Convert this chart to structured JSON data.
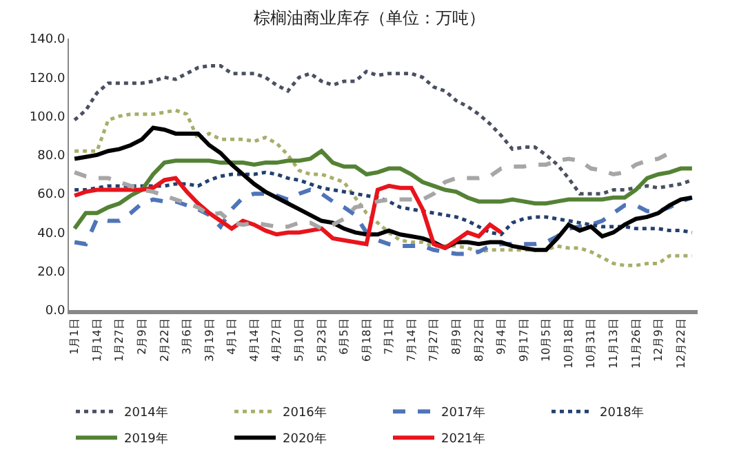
{
  "chart_data": {
    "type": "line",
    "title": "棕榈油商业库存（单位：万吨）",
    "categories": [
      "1月1日",
      null,
      "1月14日",
      null,
      "1月27日",
      null,
      "2月9日",
      null,
      "2月22日",
      null,
      "3月6日",
      null,
      "3月19日",
      null,
      "4月1日",
      null,
      "4月14日",
      null,
      "4月27日",
      null,
      "5月10日",
      null,
      "5月23日",
      null,
      "6月5日",
      null,
      "6月18日",
      null,
      "7月1日",
      null,
      "7月14日",
      null,
      "7月27日",
      null,
      "8月9日",
      null,
      "8月22日",
      null,
      "9月4日",
      null,
      "9月17日",
      null,
      "10月5日",
      null,
      "10月18日",
      null,
      "10月31日",
      null,
      "11月13日",
      null,
      "11月26日",
      null,
      "12月9日",
      null,
      "12月22日",
      null
    ],
    "series": [
      {
        "name": "2014年",
        "color": "#4a5060",
        "line_style": "dotted",
        "values": [
          98,
          103,
          112,
          117,
          117,
          117,
          117,
          118,
          120,
          119,
          122,
          125,
          126,
          126,
          122,
          122,
          122,
          120,
          116,
          113,
          120,
          122,
          118,
          116,
          118,
          118,
          123,
          121,
          122,
          122,
          122,
          120,
          115,
          113,
          108,
          105,
          101,
          96,
          90,
          83,
          84,
          84,
          80,
          75,
          68,
          60,
          60,
          60,
          62,
          62,
          63,
          64,
          63,
          64,
          65,
          67
        ]
      },
      {
        "name": "2016年",
        "color": "#a8ae6a",
        "line_style": "dotted",
        "values": [
          82,
          82,
          82,
          98,
          100,
          101,
          101,
          101,
          102,
          103,
          101,
          88,
          91,
          88,
          88,
          88,
          87,
          89,
          86,
          80,
          72,
          70,
          70,
          68,
          66,
          58,
          50,
          45,
          40,
          36,
          35,
          35,
          33,
          33,
          33,
          32,
          30,
          31,
          31,
          31,
          31,
          31,
          31,
          33,
          32,
          32,
          30,
          27,
          24,
          23,
          23,
          24,
          24,
          28,
          28,
          28
        ]
      },
      {
        "name": "2017年",
        "color": "#4f74b8",
        "line_style": "dashed",
        "values": [
          35,
          34,
          47,
          46,
          46,
          50,
          55,
          57,
          56,
          56,
          54,
          52,
          49,
          43,
          52,
          58,
          60,
          60,
          59,
          57,
          60,
          62,
          60,
          56,
          53,
          49,
          40,
          36,
          34,
          33,
          33,
          33,
          31,
          30,
          29,
          29,
          30,
          33,
          34,
          34,
          34,
          34,
          35,
          38,
          42,
          43,
          44,
          46,
          50,
          54,
          54,
          51,
          51,
          53,
          56,
          58
        ]
      },
      {
        "name": "2018年",
        "color": "#23406e",
        "line_style": "dotted",
        "values": [
          62,
          62,
          63,
          64,
          64,
          64,
          64,
          64,
          64,
          65,
          65,
          64,
          67,
          69,
          70,
          70,
          70,
          71,
          70,
          68,
          67,
          65,
          63,
          62,
          61,
          60,
          59,
          58,
          56,
          53,
          52,
          51,
          50,
          49,
          48,
          46,
          43,
          40,
          39,
          45,
          47,
          48,
          48,
          47,
          46,
          45,
          44,
          43,
          43,
          43,
          42,
          42,
          42,
          41,
          41,
          40
        ]
      },
      {
        "name": "2019年",
        "color": "#548235",
        "line_style": "solid",
        "values": [
          42,
          50,
          50,
          53,
          55,
          59,
          62,
          70,
          76,
          77,
          77,
          77,
          77,
          76,
          76,
          76,
          75,
          76,
          76,
          77,
          77,
          78,
          82,
          76,
          74,
          74,
          70,
          71,
          73,
          73,
          70,
          66,
          64,
          62,
          61,
          58,
          56,
          56,
          56,
          57,
          56,
          55,
          55,
          56,
          57,
          57,
          57,
          57,
          58,
          58,
          62,
          68,
          70,
          71,
          73,
          73
        ]
      },
      {
        "name": "2020年",
        "color": "#000000",
        "line_style": "solid",
        "values": [
          78,
          79,
          80,
          82,
          83,
          85,
          88,
          94,
          93,
          91,
          91,
          91,
          85,
          81,
          75,
          70,
          65,
          61,
          58,
          55,
          52,
          49,
          46,
          45,
          42,
          40,
          39,
          39,
          41,
          39,
          38,
          37,
          35,
          32,
          35,
          35,
          34,
          35,
          35,
          33,
          32,
          31,
          31,
          37,
          44,
          41,
          43,
          38,
          40,
          44,
          47,
          48,
          50,
          54,
          57,
          58
        ]
      },
      {
        "name": "2021年",
        "color": "#e8141c",
        "line_style": "solid",
        "values": [
          59,
          61,
          62,
          62,
          62,
          62,
          62,
          63,
          67,
          68,
          61,
          55,
          50,
          46,
          42,
          46,
          44,
          41,
          39,
          40,
          40,
          41,
          42,
          37,
          36,
          35,
          34,
          62,
          64,
          63,
          63,
          52,
          34,
          32,
          36,
          40,
          38,
          44,
          40,
          null,
          null,
          null,
          null,
          null,
          null,
          null,
          null,
          null,
          null,
          null,
          null,
          null,
          null,
          null,
          null,
          null
        ]
      },
      {
        "color": "#a6a6a6",
        "line_style": "dashed",
        "values": [
          71,
          69,
          68,
          68,
          66,
          64,
          62,
          61,
          59,
          57,
          55,
          53,
          49,
          50,
          45,
          44,
          45,
          44,
          43,
          43,
          45,
          45,
          42,
          44,
          47,
          53,
          54,
          56,
          57,
          57,
          57,
          57,
          60,
          66,
          68,
          68,
          68,
          69,
          73,
          74,
          74,
          75,
          75,
          77,
          78,
          77,
          73,
          72,
          70,
          71,
          75,
          77,
          78,
          81,
          null,
          null
        ]
      }
    ],
    "ylim": [
      0,
      140
    ],
    "yticks": [
      {
        "value": 0,
        "label": "0.0"
      },
      {
        "value": 20,
        "label": "20.0"
      },
      {
        "value": 40,
        "label": "40.0"
      },
      {
        "value": 60,
        "label": "60.0"
      },
      {
        "value": 80,
        "label": "80.0"
      },
      {
        "value": 100,
        "label": "100.0"
      },
      {
        "value": 120,
        "label": "120.0"
      },
      {
        "value": 140,
        "label": "140.0"
      }
    ],
    "legend": "bottom",
    "marker": "none"
  }
}
